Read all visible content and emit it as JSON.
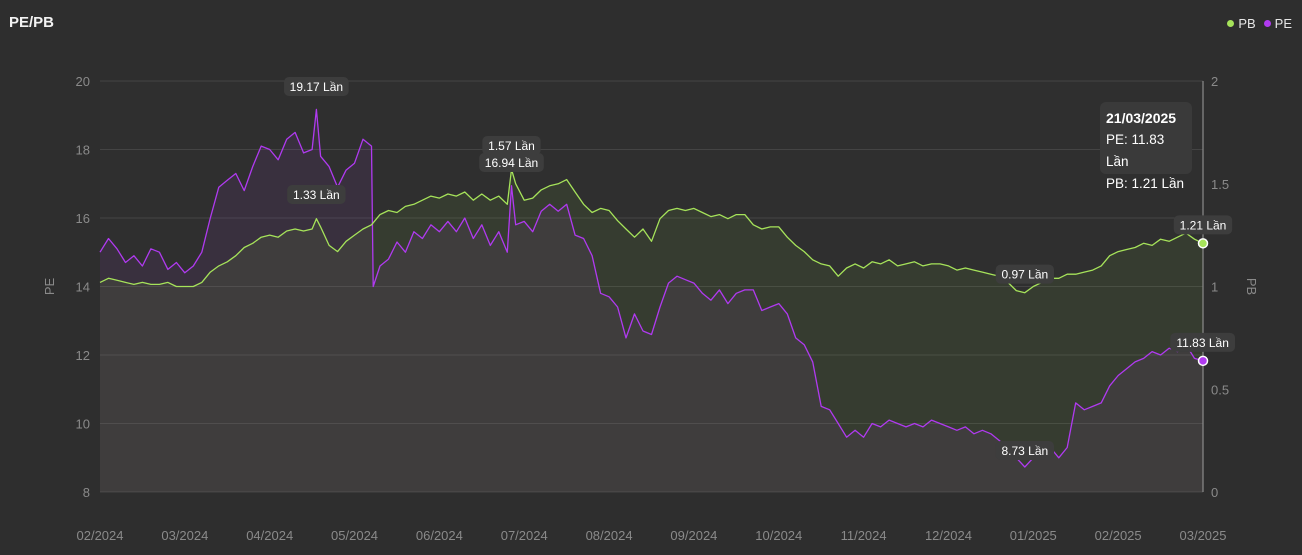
{
  "title": "PE/PB",
  "legend": [
    {
      "name": "PB",
      "color": "#a6e35a"
    },
    {
      "name": "PE",
      "color": "#b03af0"
    }
  ],
  "tooltip": {
    "date": "21/03/2025",
    "pe_text": "PE: 11.83 Lần",
    "pb_text": "PB: 1.21 Lần"
  },
  "chart_data": {
    "type": "line",
    "x_ticks": [
      "02/2024",
      "03/2024",
      "04/2024",
      "05/2024",
      "06/2024",
      "07/2024",
      "08/2024",
      "09/2024",
      "10/2024",
      "11/2024",
      "12/2024",
      "01/2025",
      "02/2025",
      "03/2025"
    ],
    "y_left": {
      "label": "PE",
      "range": [
        8,
        20
      ],
      "ticks": [
        8,
        10,
        12,
        14,
        16,
        18,
        20
      ]
    },
    "y_right": {
      "label": "PB",
      "range": [
        0,
        2
      ],
      "ticks": [
        "0",
        "0.5",
        "1",
        "1.5",
        "2"
      ]
    },
    "grid": true,
    "legend_position": "top-right",
    "series": [
      {
        "name": "PE",
        "axis": "left",
        "color": "#b03af0",
        "points": [
          [
            0.0,
            15.0
          ],
          [
            0.1,
            15.4
          ],
          [
            0.2,
            15.1
          ],
          [
            0.3,
            14.7
          ],
          [
            0.4,
            14.9
          ],
          [
            0.5,
            14.6
          ],
          [
            0.6,
            15.1
          ],
          [
            0.7,
            15.0
          ],
          [
            0.8,
            14.5
          ],
          [
            0.9,
            14.7
          ],
          [
            1.0,
            14.4
          ],
          [
            1.1,
            14.6
          ],
          [
            1.2,
            15.0
          ],
          [
            1.3,
            16.0
          ],
          [
            1.4,
            16.9
          ],
          [
            1.5,
            17.1
          ],
          [
            1.6,
            17.3
          ],
          [
            1.7,
            16.8
          ],
          [
            1.8,
            17.5
          ],
          [
            1.9,
            18.1
          ],
          [
            2.0,
            18.0
          ],
          [
            2.1,
            17.7
          ],
          [
            2.2,
            18.3
          ],
          [
            2.3,
            18.5
          ],
          [
            2.4,
            17.9
          ],
          [
            2.5,
            18.0
          ],
          [
            2.55,
            19.17
          ],
          [
            2.6,
            17.8
          ],
          [
            2.7,
            17.5
          ],
          [
            2.8,
            16.9
          ],
          [
            2.9,
            17.4
          ],
          [
            3.0,
            17.6
          ],
          [
            3.1,
            18.3
          ],
          [
            3.2,
            18.1
          ],
          [
            3.22,
            14.0
          ],
          [
            3.3,
            14.6
          ],
          [
            3.4,
            14.8
          ],
          [
            3.5,
            15.3
          ],
          [
            3.6,
            15.0
          ],
          [
            3.7,
            15.6
          ],
          [
            3.8,
            15.4
          ],
          [
            3.9,
            15.8
          ],
          [
            4.0,
            15.6
          ],
          [
            4.1,
            15.9
          ],
          [
            4.2,
            15.6
          ],
          [
            4.3,
            16.0
          ],
          [
            4.4,
            15.4
          ],
          [
            4.5,
            15.8
          ],
          [
            4.6,
            15.2
          ],
          [
            4.7,
            15.6
          ],
          [
            4.8,
            15.0
          ],
          [
            4.85,
            16.94
          ],
          [
            4.9,
            15.8
          ],
          [
            5.0,
            15.9
          ],
          [
            5.1,
            15.6
          ],
          [
            5.2,
            16.2
          ],
          [
            5.3,
            16.4
          ],
          [
            5.4,
            16.2
          ],
          [
            5.5,
            16.4
          ],
          [
            5.6,
            15.5
          ],
          [
            5.7,
            15.4
          ],
          [
            5.8,
            14.9
          ],
          [
            5.9,
            13.8
          ],
          [
            6.0,
            13.7
          ],
          [
            6.1,
            13.4
          ],
          [
            6.2,
            12.5
          ],
          [
            6.3,
            13.2
          ],
          [
            6.4,
            12.7
          ],
          [
            6.5,
            12.6
          ],
          [
            6.6,
            13.4
          ],
          [
            6.7,
            14.1
          ],
          [
            6.8,
            14.3
          ],
          [
            6.9,
            14.2
          ],
          [
            7.0,
            14.1
          ],
          [
            7.1,
            13.8
          ],
          [
            7.2,
            13.6
          ],
          [
            7.3,
            13.9
          ],
          [
            7.4,
            13.5
          ],
          [
            7.5,
            13.8
          ],
          [
            7.6,
            13.9
          ],
          [
            7.7,
            13.9
          ],
          [
            7.8,
            13.3
          ],
          [
            7.9,
            13.4
          ],
          [
            8.0,
            13.5
          ],
          [
            8.1,
            13.2
          ],
          [
            8.2,
            12.5
          ],
          [
            8.3,
            12.3
          ],
          [
            8.4,
            11.8
          ],
          [
            8.5,
            10.5
          ],
          [
            8.6,
            10.4
          ],
          [
            8.7,
            10.0
          ],
          [
            8.8,
            9.6
          ],
          [
            8.9,
            9.8
          ],
          [
            9.0,
            9.6
          ],
          [
            9.1,
            10.0
          ],
          [
            9.2,
            9.9
          ],
          [
            9.3,
            10.1
          ],
          [
            9.4,
            10.0
          ],
          [
            9.5,
            9.9
          ],
          [
            9.6,
            10.0
          ],
          [
            9.7,
            9.9
          ],
          [
            9.8,
            10.1
          ],
          [
            9.9,
            10.0
          ],
          [
            10.0,
            9.9
          ],
          [
            10.1,
            9.8
          ],
          [
            10.2,
            9.9
          ],
          [
            10.3,
            9.7
          ],
          [
            10.4,
            9.8
          ],
          [
            10.5,
            9.7
          ],
          [
            10.6,
            9.5
          ],
          [
            10.7,
            9.3
          ],
          [
            10.8,
            9.0
          ],
          [
            10.9,
            8.73
          ],
          [
            11.0,
            9.0
          ],
          [
            11.1,
            9.1
          ],
          [
            11.2,
            9.3
          ],
          [
            11.3,
            9.0
          ],
          [
            11.4,
            9.3
          ],
          [
            11.5,
            10.6
          ],
          [
            11.6,
            10.4
          ],
          [
            11.7,
            10.5
          ],
          [
            11.8,
            10.6
          ],
          [
            11.9,
            11.1
          ],
          [
            12.0,
            11.4
          ],
          [
            12.1,
            11.6
          ],
          [
            12.2,
            11.8
          ],
          [
            12.3,
            11.9
          ],
          [
            12.4,
            12.1
          ],
          [
            12.5,
            12.0
          ],
          [
            12.6,
            12.2
          ],
          [
            12.7,
            12.1
          ],
          [
            12.8,
            12.3
          ],
          [
            12.9,
            11.9
          ],
          [
            13.0,
            11.83
          ]
        ],
        "labels": [
          {
            "x": 2.55,
            "y": 19.17,
            "text": "19.17 Lần"
          },
          {
            "x": 4.85,
            "y": 16.94,
            "text": "16.94 Lần"
          },
          {
            "x": 10.9,
            "y": 8.73,
            "text": "8.73 Lần"
          },
          {
            "x": 13.0,
            "y": 11.83,
            "text": "11.83 Lần"
          }
        ]
      },
      {
        "name": "PB",
        "axis": "right",
        "color": "#a6e35a",
        "points": [
          [
            0.0,
            1.02
          ],
          [
            0.1,
            1.04
          ],
          [
            0.2,
            1.03
          ],
          [
            0.3,
            1.02
          ],
          [
            0.4,
            1.01
          ],
          [
            0.5,
            1.02
          ],
          [
            0.6,
            1.01
          ],
          [
            0.7,
            1.01
          ],
          [
            0.8,
            1.02
          ],
          [
            0.9,
            1.0
          ],
          [
            1.0,
            1.0
          ],
          [
            1.1,
            1.0
          ],
          [
            1.2,
            1.02
          ],
          [
            1.3,
            1.07
          ],
          [
            1.4,
            1.1
          ],
          [
            1.5,
            1.12
          ],
          [
            1.6,
            1.15
          ],
          [
            1.7,
            1.19
          ],
          [
            1.8,
            1.21
          ],
          [
            1.9,
            1.24
          ],
          [
            2.0,
            1.25
          ],
          [
            2.1,
            1.24
          ],
          [
            2.2,
            1.27
          ],
          [
            2.3,
            1.28
          ],
          [
            2.4,
            1.27
          ],
          [
            2.5,
            1.28
          ],
          [
            2.55,
            1.33
          ],
          [
            2.6,
            1.29
          ],
          [
            2.7,
            1.2
          ],
          [
            2.8,
            1.17
          ],
          [
            2.9,
            1.22
          ],
          [
            3.0,
            1.25
          ],
          [
            3.1,
            1.28
          ],
          [
            3.2,
            1.3
          ],
          [
            3.3,
            1.35
          ],
          [
            3.4,
            1.37
          ],
          [
            3.5,
            1.36
          ],
          [
            3.6,
            1.39
          ],
          [
            3.7,
            1.4
          ],
          [
            3.8,
            1.42
          ],
          [
            3.9,
            1.44
          ],
          [
            4.0,
            1.43
          ],
          [
            4.1,
            1.45
          ],
          [
            4.2,
            1.44
          ],
          [
            4.3,
            1.46
          ],
          [
            4.4,
            1.42
          ],
          [
            4.5,
            1.45
          ],
          [
            4.6,
            1.42
          ],
          [
            4.7,
            1.44
          ],
          [
            4.8,
            1.4
          ],
          [
            4.85,
            1.57
          ],
          [
            4.9,
            1.5
          ],
          [
            5.0,
            1.42
          ],
          [
            5.1,
            1.43
          ],
          [
            5.2,
            1.47
          ],
          [
            5.3,
            1.49
          ],
          [
            5.4,
            1.5
          ],
          [
            5.5,
            1.52
          ],
          [
            5.6,
            1.46
          ],
          [
            5.7,
            1.4
          ],
          [
            5.8,
            1.36
          ],
          [
            5.9,
            1.38
          ],
          [
            6.0,
            1.37
          ],
          [
            6.1,
            1.32
          ],
          [
            6.2,
            1.28
          ],
          [
            6.3,
            1.24
          ],
          [
            6.4,
            1.28
          ],
          [
            6.5,
            1.22
          ],
          [
            6.6,
            1.33
          ],
          [
            6.7,
            1.37
          ],
          [
            6.8,
            1.38
          ],
          [
            6.9,
            1.37
          ],
          [
            7.0,
            1.38
          ],
          [
            7.1,
            1.36
          ],
          [
            7.2,
            1.34
          ],
          [
            7.3,
            1.35
          ],
          [
            7.4,
            1.33
          ],
          [
            7.5,
            1.35
          ],
          [
            7.6,
            1.35
          ],
          [
            7.7,
            1.3
          ],
          [
            7.8,
            1.28
          ],
          [
            7.9,
            1.29
          ],
          [
            8.0,
            1.29
          ],
          [
            8.1,
            1.24
          ],
          [
            8.2,
            1.2
          ],
          [
            8.3,
            1.17
          ],
          [
            8.4,
            1.13
          ],
          [
            8.5,
            1.11
          ],
          [
            8.6,
            1.1
          ],
          [
            8.7,
            1.05
          ],
          [
            8.8,
            1.09
          ],
          [
            8.9,
            1.11
          ],
          [
            9.0,
            1.09
          ],
          [
            9.1,
            1.12
          ],
          [
            9.2,
            1.11
          ],
          [
            9.3,
            1.13
          ],
          [
            9.4,
            1.1
          ],
          [
            9.5,
            1.11
          ],
          [
            9.6,
            1.12
          ],
          [
            9.7,
            1.1
          ],
          [
            9.8,
            1.11
          ],
          [
            9.9,
            1.11
          ],
          [
            10.0,
            1.1
          ],
          [
            10.1,
            1.08
          ],
          [
            10.2,
            1.09
          ],
          [
            10.3,
            1.08
          ],
          [
            10.4,
            1.07
          ],
          [
            10.5,
            1.06
          ],
          [
            10.6,
            1.05
          ],
          [
            10.7,
            1.02
          ],
          [
            10.8,
            0.98
          ],
          [
            10.9,
            0.97
          ],
          [
            11.0,
            1.0
          ],
          [
            11.1,
            1.02
          ],
          [
            11.2,
            1.04
          ],
          [
            11.3,
            1.04
          ],
          [
            11.4,
            1.06
          ],
          [
            11.5,
            1.06
          ],
          [
            11.6,
            1.07
          ],
          [
            11.7,
            1.08
          ],
          [
            11.8,
            1.1
          ],
          [
            11.9,
            1.15
          ],
          [
            12.0,
            1.17
          ],
          [
            12.1,
            1.18
          ],
          [
            12.2,
            1.19
          ],
          [
            12.3,
            1.21
          ],
          [
            12.4,
            1.2
          ],
          [
            12.5,
            1.23
          ],
          [
            12.6,
            1.22
          ],
          [
            12.7,
            1.24
          ],
          [
            12.8,
            1.26
          ],
          [
            12.9,
            1.23
          ],
          [
            13.0,
            1.21
          ]
        ],
        "labels": [
          {
            "x": 2.55,
            "y": 1.33,
            "text": "1.33 Lần"
          },
          {
            "x": 4.85,
            "y": 1.57,
            "text": "1.57 Lần"
          },
          {
            "x": 10.9,
            "y": 0.97,
            "text": "0.97 Lần"
          },
          {
            "x": 13.0,
            "y": 1.21,
            "text": "1.21 Lần"
          }
        ]
      }
    ]
  }
}
